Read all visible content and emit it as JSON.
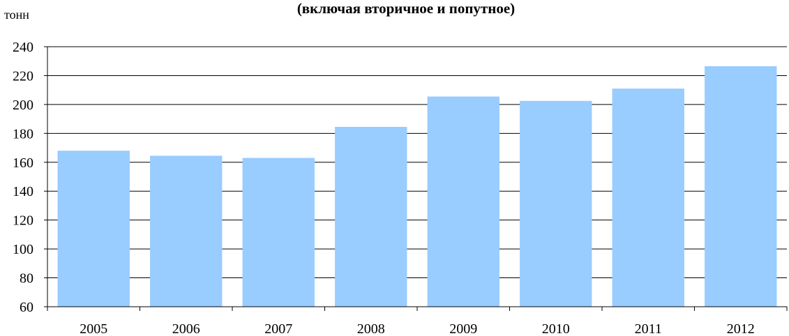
{
  "chart_data": {
    "type": "bar",
    "title": "(включая вторичное и попутное)",
    "y_label": "тонн",
    "categories": [
      "2005",
      "2006",
      "2007",
      "2008",
      "2009",
      "2010",
      "2011",
      "2012"
    ],
    "values": [
      168,
      164.5,
      163,
      184.5,
      205.5,
      202.5,
      211,
      226.5
    ],
    "color": "#99ccff",
    "ylim": [
      60,
      240
    ],
    "yticks": [
      60,
      80,
      100,
      120,
      140,
      160,
      180,
      200,
      220,
      240
    ],
    "grid": true
  }
}
